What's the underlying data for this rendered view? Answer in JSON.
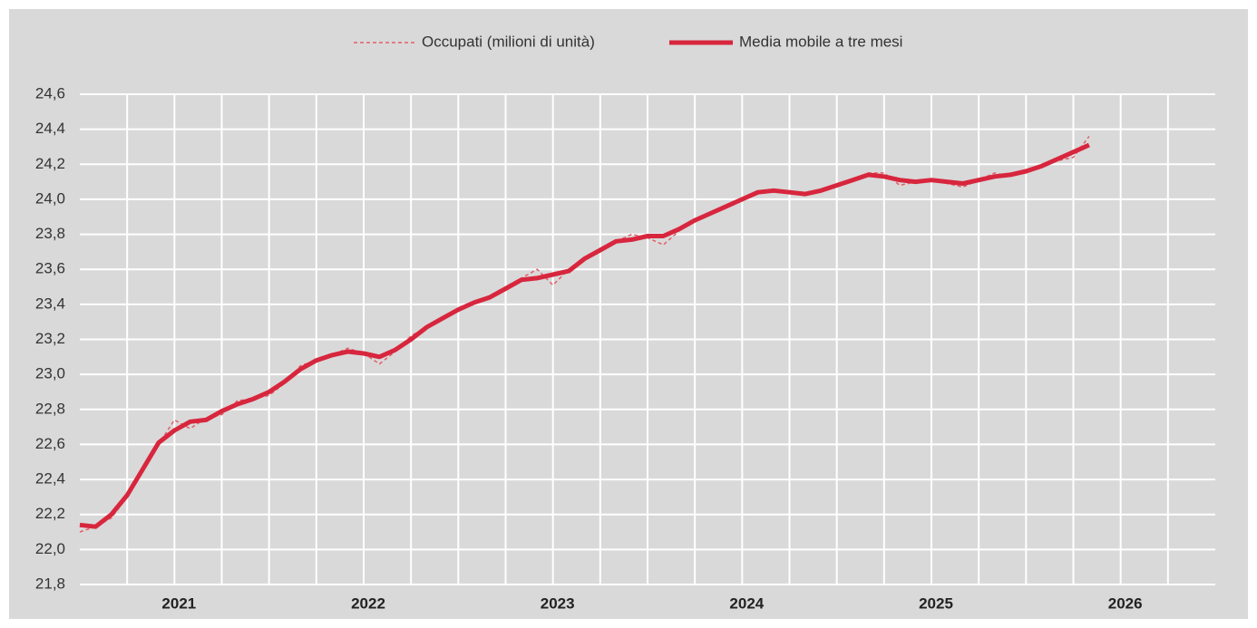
{
  "chart_data": {
    "type": "line",
    "categories": [
      null,
      null,
      null,
      null,
      null,
      null,
      "2021",
      null,
      null,
      null,
      null,
      null,
      null,
      null,
      null,
      null,
      null,
      null,
      "2022",
      null,
      null,
      null,
      null,
      null,
      null,
      null,
      null,
      null,
      null,
      null,
      "2023",
      null,
      null,
      null,
      null,
      null,
      null,
      null,
      null,
      null,
      null,
      null,
      "2024",
      null,
      null,
      null,
      null,
      null,
      null,
      null,
      null,
      null,
      null,
      null,
      "2025",
      null,
      null,
      null,
      null,
      null,
      null,
      null,
      null,
      null,
      null,
      null,
      "2026",
      null,
      null,
      null,
      null,
      null
    ],
    "series": [
      {
        "name": "Occupati (milioni di unità)",
        "color": "#e0606a",
        "dashed": true,
        "values": [
          22.1,
          22.13,
          22.18,
          22.3,
          22.45,
          22.6,
          22.74,
          22.69,
          22.75,
          22.77,
          22.85,
          22.86,
          22.88,
          22.95,
          23.05,
          23.08,
          23.11,
          23.15,
          23.12,
          23.06,
          23.13,
          23.22,
          23.27,
          23.32,
          23.37,
          23.41,
          23.45,
          23.5,
          23.55,
          23.6,
          23.51,
          23.6,
          23.67,
          23.72,
          23.76,
          23.8,
          23.78,
          23.74,
          23.82,
          23.88,
          23.92,
          23.96,
          23.99,
          24.04,
          24.05,
          24.05,
          24.03,
          24.05,
          24.08,
          24.11,
          24.15,
          24.15,
          24.08,
          24.1,
          24.11,
          24.09,
          24.07,
          24.11,
          24.15,
          24.13,
          24.16,
          24.19,
          24.22,
          24.24,
          24.36,
          null,
          null,
          null,
          null,
          null,
          null,
          null
        ]
      },
      {
        "name": "Media mobile a tre mesi",
        "color": "#d7263d",
        "dashed": false,
        "values": [
          22.14,
          22.13,
          22.2,
          22.31,
          22.46,
          22.61,
          22.68,
          22.73,
          22.74,
          22.79,
          22.83,
          22.86,
          22.9,
          22.96,
          23.03,
          23.08,
          23.11,
          23.13,
          23.12,
          23.1,
          23.14,
          23.2,
          23.27,
          23.32,
          23.37,
          23.41,
          23.44,
          23.49,
          23.54,
          23.55,
          23.57,
          23.59,
          23.66,
          23.71,
          23.76,
          23.77,
          23.79,
          23.79,
          23.83,
          23.88,
          23.92,
          23.96,
          24.0,
          24.04,
          24.05,
          24.04,
          24.03,
          24.05,
          24.08,
          24.11,
          24.14,
          24.13,
          24.11,
          24.1,
          24.11,
          24.1,
          24.09,
          24.11,
          24.13,
          24.14,
          24.16,
          24.19,
          24.23,
          24.27,
          24.31,
          null,
          null,
          null,
          null,
          null,
          null,
          null
        ]
      }
    ],
    "ylim": [
      21.8,
      24.6
    ],
    "yticks": [
      {
        "value": 21.8,
        "label": "21,8"
      },
      {
        "value": 22.0,
        "label": "22,0"
      },
      {
        "value": 22.2,
        "label": "22,2"
      },
      {
        "value": 22.4,
        "label": "22,4"
      },
      {
        "value": 22.6,
        "label": "22,6"
      },
      {
        "value": 22.8,
        "label": "22,8"
      },
      {
        "value": 23.0,
        "label": "23,0"
      },
      {
        "value": 23.2,
        "label": "23,2"
      },
      {
        "value": 23.4,
        "label": "23,4"
      },
      {
        "value": 23.6,
        "label": "23,6"
      },
      {
        "value": 23.8,
        "label": "23,8"
      },
      {
        "value": 24.0,
        "label": "24,0"
      },
      {
        "value": 24.2,
        "label": "24,2"
      },
      {
        "value": 24.4,
        "label": "24,4"
      },
      {
        "value": 24.6,
        "label": "24,6"
      }
    ],
    "grid": true,
    "legend": "top"
  }
}
